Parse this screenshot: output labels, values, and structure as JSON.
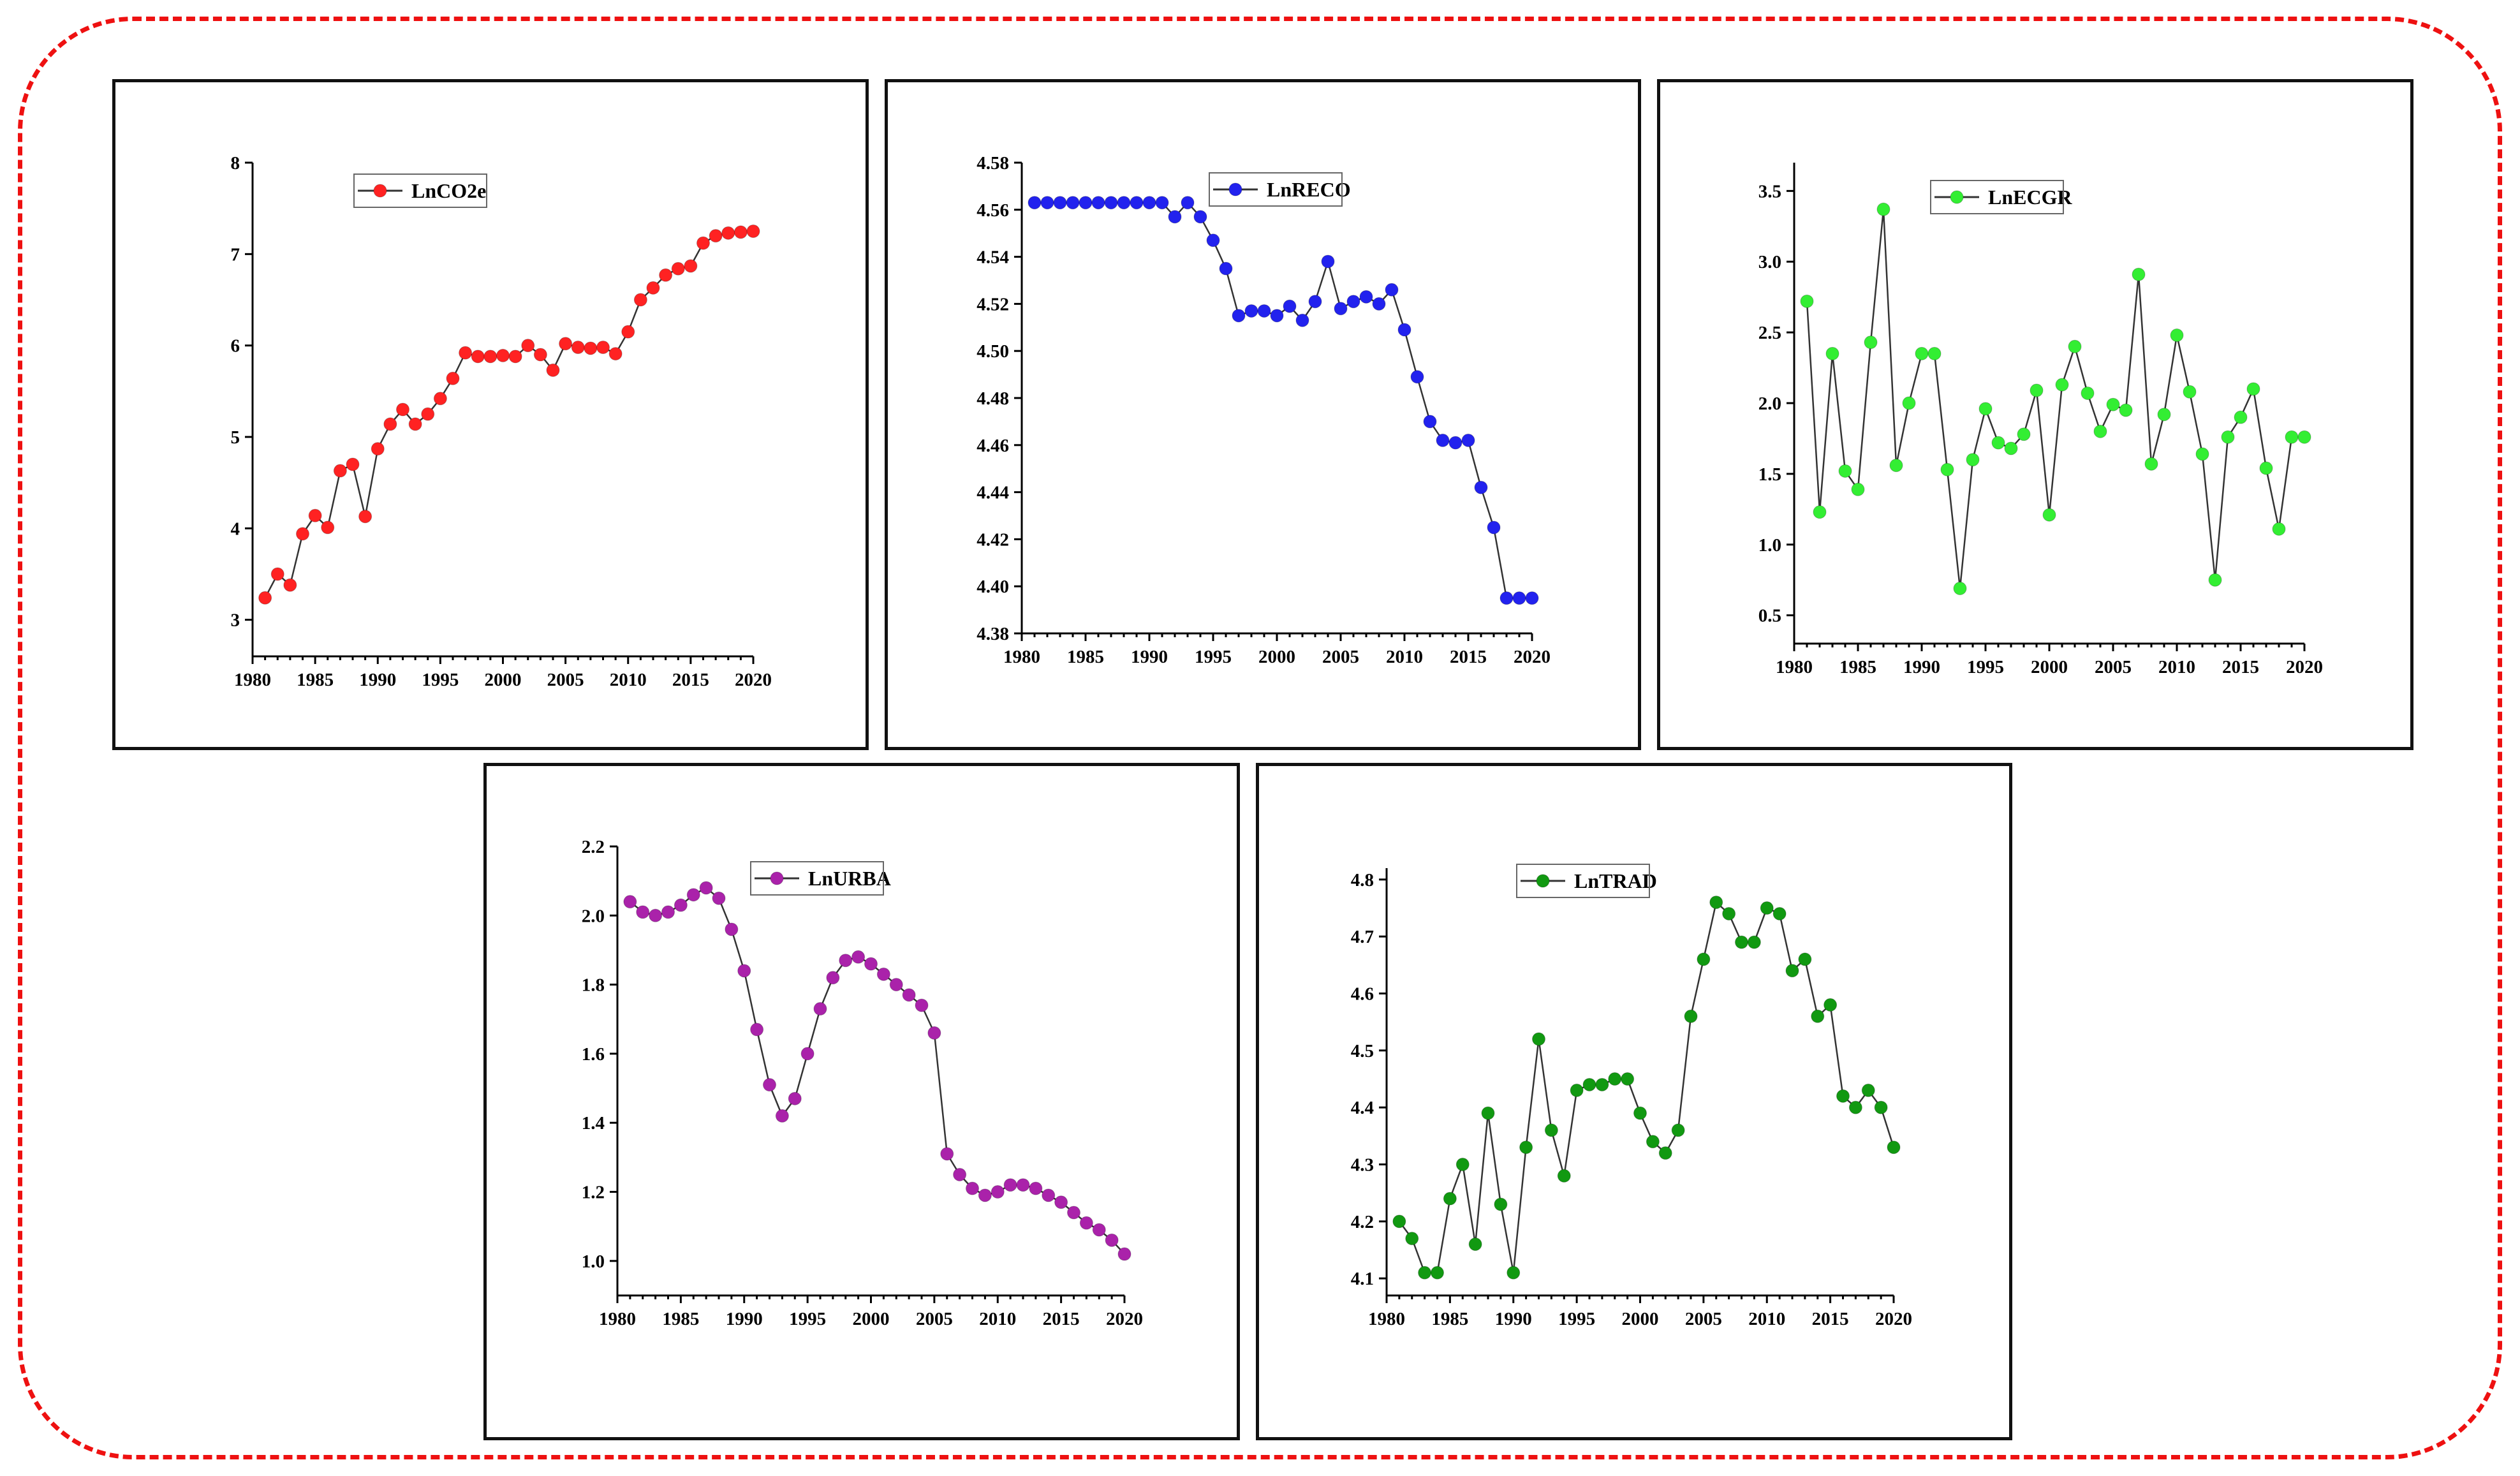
{
  "chart_data": [
    {
      "type": "line",
      "legend": "LnCO2e",
      "color": "#ff2222",
      "x": [
        1981,
        1982,
        1983,
        1984,
        1985,
        1986,
        1987,
        1988,
        1989,
        1990,
        1991,
        1992,
        1993,
        1994,
        1995,
        1996,
        1997,
        1998,
        1999,
        2000,
        2001,
        2002,
        2003,
        2004,
        2005,
        2006,
        2007,
        2008,
        2009,
        2010,
        2011,
        2012,
        2013,
        2014,
        2015,
        2016,
        2017,
        2018,
        2019,
        2020
      ],
      "values": [
        3.24,
        3.5,
        3.38,
        3.94,
        4.14,
        4.01,
        4.63,
        4.7,
        4.13,
        4.87,
        5.14,
        5.3,
        5.14,
        5.25,
        5.42,
        5.64,
        5.92,
        5.88,
        5.88,
        5.89,
        5.88,
        6.0,
        5.9,
        5.73,
        6.02,
        5.98,
        5.97,
        5.98,
        5.91,
        6.15,
        6.5,
        6.63,
        6.77,
        6.84,
        6.87,
        7.12,
        7.2,
        7.23,
        7.24,
        7.25
      ],
      "ylim": [
        2.6,
        8.0
      ],
      "yticks": [
        "3",
        "4",
        "5",
        "6",
        "7",
        "8"
      ],
      "xticks": [
        "1980",
        "1985",
        "1990",
        "1995",
        "2000",
        "2005",
        "2010",
        "2015",
        "2020"
      ]
    },
    {
      "type": "line",
      "legend": "LnRECO",
      "color": "#2222ee",
      "x": [
        1981,
        1982,
        1983,
        1984,
        1985,
        1986,
        1987,
        1988,
        1989,
        1990,
        1991,
        1992,
        1993,
        1994,
        1995,
        1996,
        1997,
        1998,
        1999,
        2000,
        2001,
        2002,
        2003,
        2004,
        2005,
        2006,
        2007,
        2008,
        2009,
        2010,
        2011,
        2012,
        2013,
        2014,
        2015,
        2016,
        2017,
        2018,
        2019,
        2020
      ],
      "values": [
        4.563,
        4.563,
        4.563,
        4.563,
        4.563,
        4.563,
        4.563,
        4.563,
        4.563,
        4.563,
        4.563,
        4.557,
        4.563,
        4.557,
        4.547,
        4.535,
        4.515,
        4.517,
        4.517,
        4.515,
        4.519,
        4.513,
        4.521,
        4.538,
        4.518,
        4.521,
        4.523,
        4.52,
        4.526,
        4.509,
        4.489,
        4.47,
        4.462,
        4.461,
        4.462,
        4.442,
        4.425,
        4.395,
        4.395,
        4.395
      ],
      "ylim": [
        4.38,
        4.58
      ],
      "yticks": [
        "4.38",
        "4.40",
        "4.42",
        "4.44",
        "4.46",
        "4.48",
        "4.50",
        "4.52",
        "4.54",
        "4.56",
        "4.58"
      ],
      "xticks": [
        "1980",
        "1985",
        "1990",
        "1995",
        "2000",
        "2005",
        "2010",
        "2015",
        "2020"
      ]
    },
    {
      "type": "line",
      "legend": "LnECGR",
      "color": "#33ee33",
      "x": [
        1981,
        1982,
        1983,
        1984,
        1985,
        1986,
        1987,
        1988,
        1989,
        1990,
        1991,
        1992,
        1993,
        1994,
        1995,
        1996,
        1997,
        1998,
        1999,
        2000,
        2001,
        2002,
        2003,
        2004,
        2005,
        2006,
        2007,
        2008,
        2009,
        2010,
        2011,
        2012,
        2013,
        2014,
        2015,
        2016,
        2017,
        2018,
        2019,
        2020
      ],
      "values": [
        2.72,
        1.23,
        2.35,
        1.52,
        1.39,
        2.43,
        3.37,
        1.56,
        2.0,
        2.35,
        2.35,
        1.53,
        0.69,
        1.6,
        1.96,
        1.72,
        1.68,
        1.78,
        2.09,
        1.21,
        2.13,
        2.4,
        2.07,
        1.8,
        1.99,
        1.95,
        2.91,
        1.57,
        1.92,
        2.48,
        2.08,
        1.64,
        0.75,
        1.76,
        1.9,
        2.1,
        1.54,
        1.11,
        1.76,
        1.76
      ],
      "ylim": [
        0.3,
        3.7
      ],
      "yticks": [
        "0.5",
        "1.0",
        "1.5",
        "2.0",
        "2.5",
        "3.0",
        "3.5"
      ],
      "xticks": [
        "1980",
        "1985",
        "1990",
        "1995",
        "2000",
        "2005",
        "2010",
        "2015",
        "2020"
      ]
    },
    {
      "type": "line",
      "legend": "LnURBA",
      "color": "#aa22aa",
      "x": [
        1981,
        1982,
        1983,
        1984,
        1985,
        1986,
        1987,
        1988,
        1989,
        1990,
        1991,
        1992,
        1993,
        1994,
        1995,
        1996,
        1997,
        1998,
        1999,
        2000,
        2001,
        2002,
        2003,
        2004,
        2005,
        2006,
        2007,
        2008,
        2009,
        2010,
        2011,
        2012,
        2013,
        2014,
        2015,
        2016,
        2017,
        2018,
        2019,
        2020
      ],
      "values": [
        2.04,
        2.01,
        2.0,
        2.01,
        2.03,
        2.06,
        2.08,
        2.05,
        1.96,
        1.84,
        1.67,
        1.51,
        1.42,
        1.47,
        1.6,
        1.73,
        1.82,
        1.87,
        1.88,
        1.86,
        1.83,
        1.8,
        1.77,
        1.74,
        1.66,
        1.31,
        1.25,
        1.21,
        1.19,
        1.2,
        1.22,
        1.22,
        1.21,
        1.19,
        1.17,
        1.14,
        1.11,
        1.09,
        1.06,
        1.02
      ],
      "ylim": [
        0.9,
        2.2
      ],
      "yticks": [
        "1.0",
        "1.2",
        "1.4",
        "1.6",
        "1.8",
        "2.0",
        "2.2"
      ],
      "xticks": [
        "1980",
        "1985",
        "1990",
        "1995",
        "2000",
        "2005",
        "2010",
        "2015",
        "2020"
      ]
    },
    {
      "type": "line",
      "legend": "LnTRAD",
      "color": "#119911",
      "x": [
        1981,
        1982,
        1983,
        1984,
        1985,
        1986,
        1987,
        1988,
        1989,
        1990,
        1991,
        1992,
        1993,
        1994,
        1995,
        1996,
        1997,
        1998,
        1999,
        2000,
        2001,
        2002,
        2003,
        2004,
        2005,
        2006,
        2007,
        2008,
        2009,
        2010,
        2011,
        2012,
        2013,
        2014,
        2015,
        2016,
        2017,
        2018,
        2019,
        2020
      ],
      "values": [
        4.2,
        4.17,
        4.11,
        4.11,
        4.24,
        4.3,
        4.16,
        4.39,
        4.23,
        4.11,
        4.33,
        4.52,
        4.36,
        4.28,
        4.43,
        4.44,
        4.44,
        4.45,
        4.45,
        4.39,
        4.34,
        4.32,
        4.36,
        4.56,
        4.66,
        4.76,
        4.74,
        4.69,
        4.69,
        4.75,
        4.74,
        4.64,
        4.66,
        4.56,
        4.58,
        4.42,
        4.4,
        4.43,
        4.4,
        4.33
      ],
      "ylim": [
        4.07,
        4.82
      ],
      "yticks": [
        "4.1",
        "4.2",
        "4.3",
        "4.4",
        "4.5",
        "4.6",
        "4.7",
        "4.8"
      ],
      "xticks": [
        "1980",
        "1985",
        "1990",
        "1995",
        "2000",
        "2005",
        "2010",
        "2015",
        "2020"
      ]
    }
  ]
}
